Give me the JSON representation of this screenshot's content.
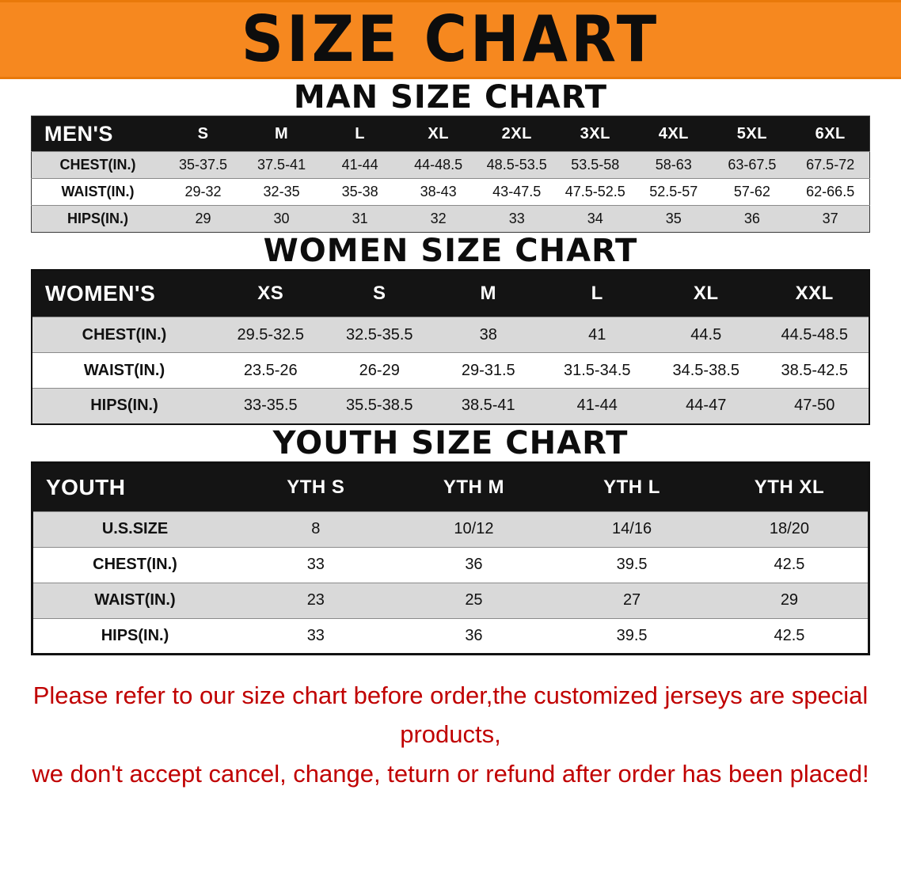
{
  "banner": {
    "title": "SIZE CHART"
  },
  "sections": [
    {
      "heading": "MAN SIZE CHART",
      "table": {
        "header": [
          "MEN'S",
          "S",
          "M",
          "L",
          "XL",
          "2XL",
          "3XL",
          "4XL",
          "5XL",
          "6XL"
        ],
        "rows": [
          [
            "CHEST(IN.)",
            "35-37.5",
            "37.5-41",
            "41-44",
            "44-48.5",
            "48.5-53.5",
            "53.5-58",
            "58-63",
            "63-67.5",
            "67.5-72"
          ],
          [
            "WAIST(IN.)",
            "29-32",
            "32-35",
            "35-38",
            "38-43",
            "43-47.5",
            "47.5-52.5",
            "52.5-57",
            "57-62",
            "62-66.5"
          ],
          [
            "HIPS(IN.)",
            "29",
            "30",
            "31",
            "32",
            "33",
            "34",
            "35",
            "36",
            "37"
          ]
        ]
      }
    },
    {
      "heading": "WOMEN SIZE CHART",
      "table": {
        "header": [
          "WOMEN'S",
          "XS",
          "S",
          "M",
          "L",
          "XL",
          "XXL"
        ],
        "rows": [
          [
            "CHEST(IN.)",
            "29.5-32.5",
            "32.5-35.5",
            "38",
            "41",
            "44.5",
            "44.5-48.5"
          ],
          [
            "WAIST(IN.)",
            "23.5-26",
            "26-29",
            "29-31.5",
            "31.5-34.5",
            "34.5-38.5",
            "38.5-42.5"
          ],
          [
            "HIPS(IN.)",
            "33-35.5",
            "35.5-38.5",
            "38.5-41",
            "41-44",
            "44-47",
            "47-50"
          ]
        ]
      }
    },
    {
      "heading": "YOUTH SIZE CHART",
      "table": {
        "header": [
          "YOUTH",
          "YTH S",
          "YTH M",
          "YTH L",
          "YTH XL"
        ],
        "rows": [
          [
            "U.S.SIZE",
            "8",
            "10/12",
            "14/16",
            "18/20"
          ],
          [
            "CHEST(IN.)",
            "33",
            "36",
            "39.5",
            "42.5"
          ],
          [
            "WAIST(IN.)",
            "23",
            "25",
            "27",
            "29"
          ],
          [
            "HIPS(IN.)",
            "33",
            "36",
            "39.5",
            "42.5"
          ]
        ]
      }
    }
  ],
  "footer": {
    "line1": "Please refer to our size chart before order,the customized jerseys are special products,",
    "line2": "we don't accept cancel, change, teturn or refund after order has been placed!"
  },
  "colors": {
    "banner_bg": "#f6881f",
    "table_header_bg": "#141414",
    "row_stripe": "#d9d9d9",
    "notice_text": "#c00000"
  }
}
